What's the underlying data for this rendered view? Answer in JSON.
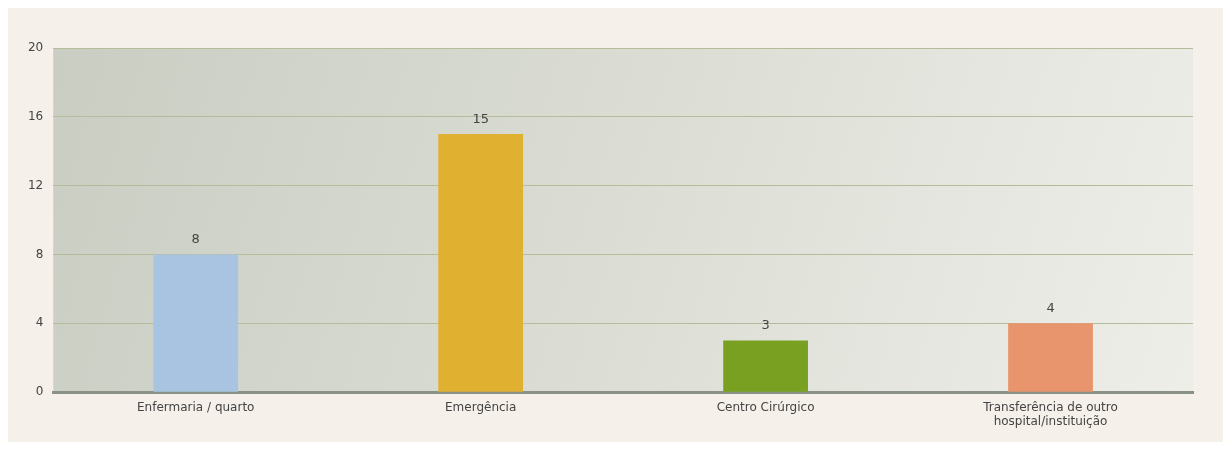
{
  "chart_data": {
    "type": "bar",
    "categories": [
      "Enfermaria / quarto",
      "Emergência",
      "Centro Cirúrgico",
      "Transferência de outro hospital/instituição"
    ],
    "values": [
      8,
      15,
      3,
      4
    ],
    "colors": [
      "#a9c4e0",
      "#e0b030",
      "#7aa022",
      "#e8946c"
    ],
    "ylim": [
      0,
      20
    ],
    "yticks": [
      0,
      4,
      8,
      12,
      16,
      20
    ],
    "grid": "y",
    "data_labels": true,
    "legend": false
  }
}
